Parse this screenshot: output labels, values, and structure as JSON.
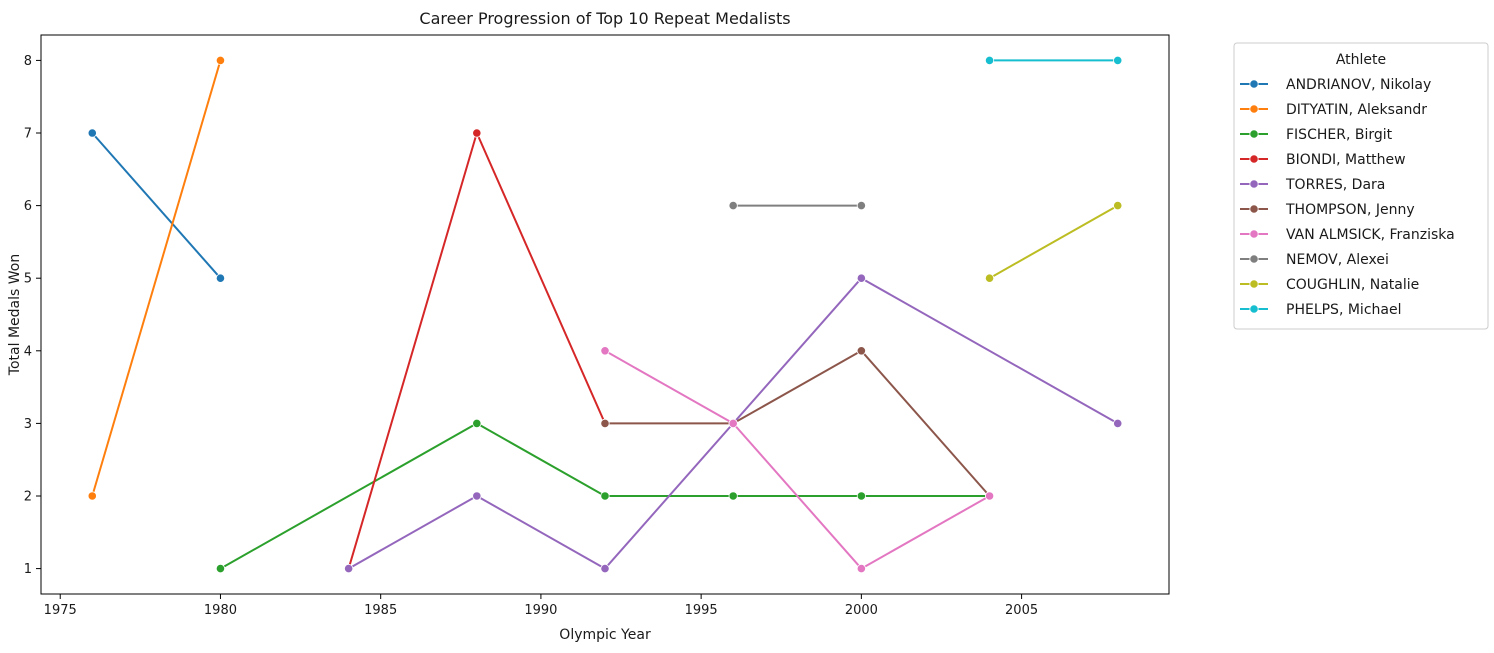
{
  "chart_data": {
    "type": "line",
    "title": "Career Progression of Top 10 Repeat Medalists",
    "xlabel": "Olympic Year",
    "ylabel": "Total Medals Won",
    "xlim": [
      1974.4,
      2009.6
    ],
    "ylim": [
      0.65,
      8.35
    ],
    "xticks": [
      1975,
      1980,
      1985,
      1990,
      1995,
      2000,
      2005
    ],
    "yticks": [
      1,
      2,
      3,
      4,
      5,
      6,
      7,
      8
    ],
    "grid": false,
    "legend": {
      "title": "Athlete",
      "placement": "outside-right"
    },
    "series": [
      {
        "name": "ANDRIANOV, Nikolay",
        "color": "#1f77b4",
        "points": [
          [
            1976,
            7
          ],
          [
            1980,
            5
          ]
        ]
      },
      {
        "name": "DITYATIN, Aleksandr",
        "color": "#ff7f0e",
        "points": [
          [
            1976,
            2
          ],
          [
            1980,
            8
          ]
        ]
      },
      {
        "name": "FISCHER, Birgit",
        "color": "#2ca02c",
        "points": [
          [
            1980,
            1
          ],
          [
            1988,
            3
          ],
          [
            1992,
            2
          ],
          [
            1996,
            2
          ],
          [
            2000,
            2
          ],
          [
            2004,
            2
          ]
        ]
      },
      {
        "name": "BIONDI, Matthew",
        "color": "#d62728",
        "points": [
          [
            1984,
            1
          ],
          [
            1988,
            7
          ],
          [
            1992,
            3
          ]
        ]
      },
      {
        "name": "TORRES, Dara",
        "color": "#9467bd",
        "points": [
          [
            1984,
            1
          ],
          [
            1988,
            2
          ],
          [
            1992,
            1
          ],
          [
            2000,
            5
          ],
          [
            2008,
            3
          ]
        ]
      },
      {
        "name": "THOMPSON, Jenny",
        "color": "#8c564b",
        "points": [
          [
            1992,
            3
          ],
          [
            1996,
            3
          ],
          [
            2000,
            4
          ],
          [
            2004,
            2
          ]
        ]
      },
      {
        "name": "VAN ALMSICK, Franziska",
        "color": "#e377c2",
        "points": [
          [
            1992,
            4
          ],
          [
            1996,
            3
          ],
          [
            2000,
            1
          ],
          [
            2004,
            2
          ]
        ]
      },
      {
        "name": "NEMOV, Alexei",
        "color": "#7f7f7f",
        "points": [
          [
            1996,
            6
          ],
          [
            2000,
            6
          ]
        ]
      },
      {
        "name": "COUGHLIN, Natalie",
        "color": "#bcbd22",
        "points": [
          [
            2004,
            5
          ],
          [
            2008,
            6
          ]
        ]
      },
      {
        "name": "PHELPS, Michael",
        "color": "#17becf",
        "points": [
          [
            2004,
            8
          ],
          [
            2008,
            8
          ]
        ]
      }
    ]
  }
}
